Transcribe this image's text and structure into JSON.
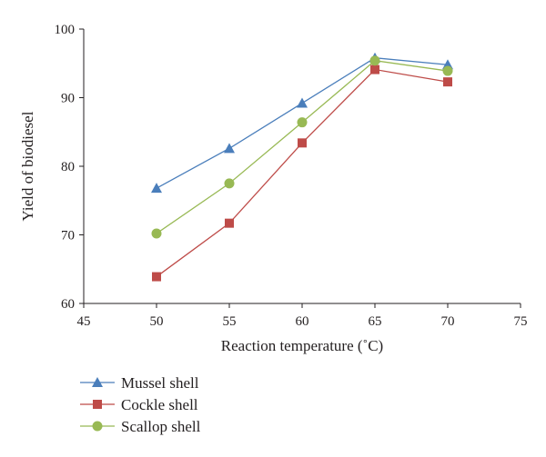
{
  "chart_data": {
    "type": "line",
    "title": "",
    "xlabel": "Reaction temperature (˚C)",
    "ylabel": "Yield of biodiesel",
    "xlim": [
      45,
      75
    ],
    "ylim": [
      60,
      100
    ],
    "xticks": [
      45,
      50,
      55,
      60,
      65,
      70,
      75
    ],
    "yticks": [
      60,
      70,
      80,
      90,
      100
    ],
    "grid": false,
    "legend_position": "bottom-left",
    "x": [
      50,
      55,
      60,
      65,
      70
    ],
    "series": [
      {
        "name": "Mussel shell",
        "marker": "triangle",
        "color": "#4a7ebb",
        "values": [
          76.8,
          82.6,
          89.2,
          95.8,
          94.8
        ]
      },
      {
        "name": "Cockle shell",
        "marker": "square",
        "color": "#be4b48",
        "values": [
          63.9,
          71.7,
          83.4,
          94.1,
          92.3
        ]
      },
      {
        "name": "Scallop shell",
        "marker": "circle",
        "color": "#98b954",
        "values": [
          70.2,
          77.5,
          86.4,
          95.4,
          93.9
        ]
      }
    ]
  }
}
